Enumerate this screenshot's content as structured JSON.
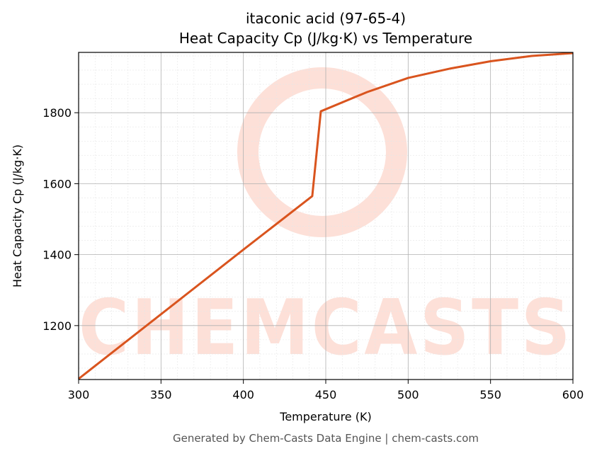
{
  "chart_data": {
    "type": "line",
    "title": "itaconic acid (97-65-4)",
    "subtitle": "Heat Capacity Cp (J/kg·K) vs Temperature",
    "x_label": "Temperature (K)",
    "y_label": "Heat Capacity Cp (J/kg·K)",
    "watermark": "CHEMCASTS",
    "footer": "Generated by Chem-Casts Data Engine | chem-casts.com",
    "x": [
      300,
      350,
      400,
      441.8,
      447,
      475,
      500,
      525,
      550,
      575,
      600
    ],
    "values": [
      1050,
      1232,
      1414,
      1565,
      1804,
      1858,
      1898,
      1924,
      1945,
      1960,
      1968
    ],
    "color": "#d9541e",
    "xlim": [
      300,
      600
    ],
    "xticks": [
      300,
      350,
      400,
      450,
      500,
      550,
      600
    ],
    "ylim": [
      1048,
      1970
    ],
    "yticks": [
      1200,
      1400,
      1600,
      1800
    ],
    "grid": true
  }
}
